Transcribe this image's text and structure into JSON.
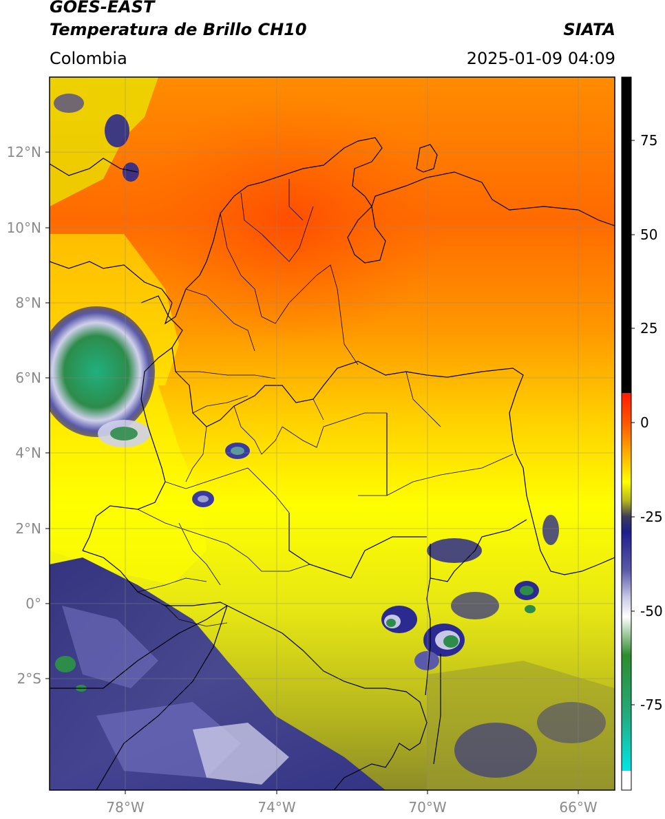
{
  "header": {
    "satellite": "GOES-EAST",
    "product": "Temperatura de Brillo CH10",
    "agency": "SIATA",
    "region": "Colombia",
    "datetime": "2025-01-09 04:09"
  },
  "axes": {
    "lat_labels": [
      "12°N",
      "10°N",
      "8°N",
      "6°N",
      "4°N",
      "2°N",
      "0°",
      "2°S"
    ],
    "lon_labels": [
      "78°W",
      "74°W",
      "70°W",
      "66°W"
    ]
  },
  "colorbar": {
    "labels": [
      "75",
      "50",
      "25",
      "0",
      "-25",
      "-50",
      "-75"
    ],
    "stops": [
      {
        "value": 90,
        "color": "#000000"
      },
      {
        "value": 8,
        "color": "#000000"
      },
      {
        "value": 8,
        "color": "#ff1a00"
      },
      {
        "value": 0,
        "color": "#ff5a00"
      },
      {
        "value": -10,
        "color": "#ffc800"
      },
      {
        "value": -15,
        "color": "#ffff00"
      },
      {
        "value": -20,
        "color": "#b4b41e"
      },
      {
        "value": -24,
        "color": "#3c3c5a"
      },
      {
        "value": -28,
        "color": "#1e1e8c"
      },
      {
        "value": -38,
        "color": "#5a5aaa"
      },
      {
        "value": -45,
        "color": "#c8c8e6"
      },
      {
        "value": -50,
        "color": "#ffffff"
      },
      {
        "value": -60,
        "color": "#2d8c2d"
      },
      {
        "value": -75,
        "color": "#23aa7a"
      },
      {
        "value": -90,
        "color": "#00e6e6"
      },
      {
        "value": -90,
        "color": "#ffffff"
      },
      {
        "value": -95,
        "color": "#ffffff"
      }
    ]
  }
}
